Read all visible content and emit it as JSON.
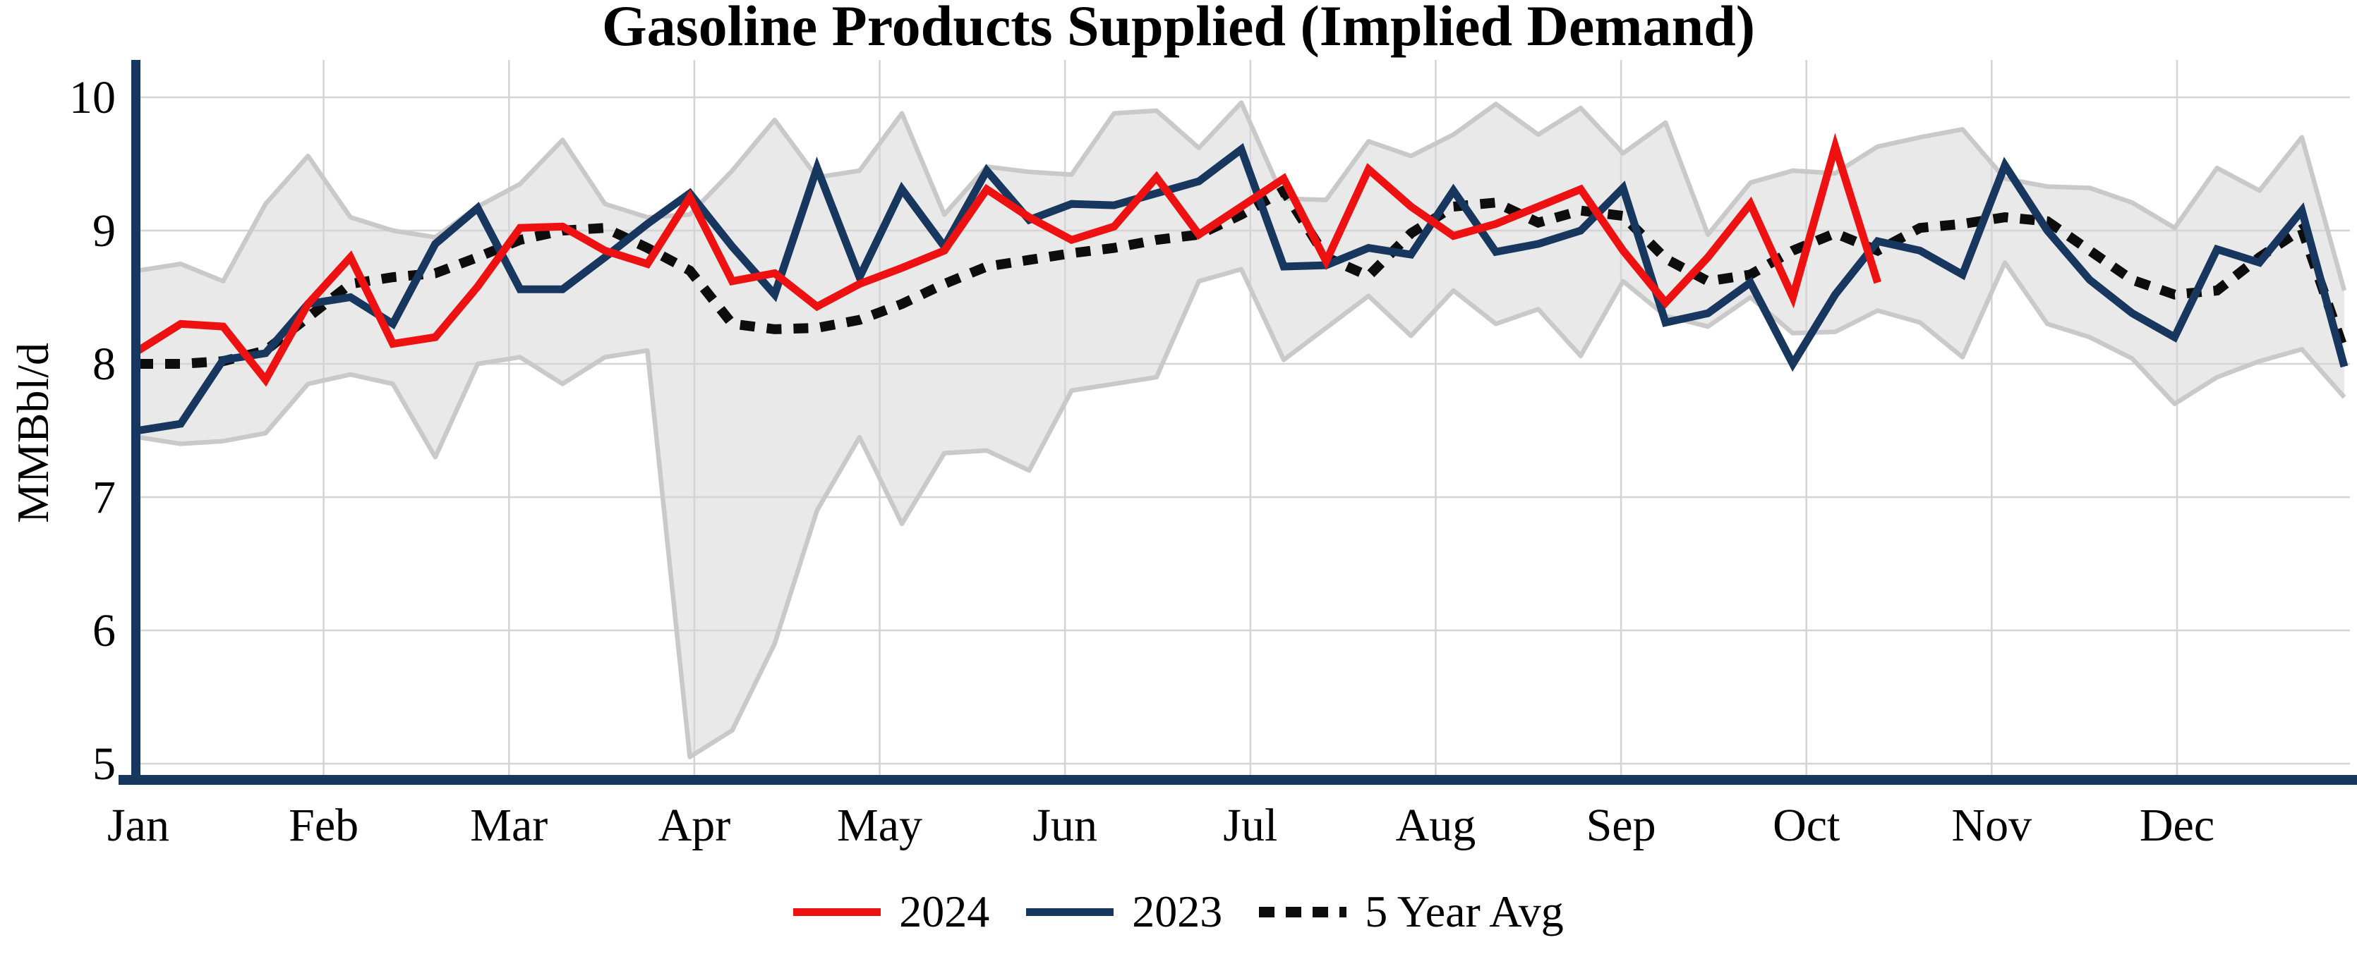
{
  "title": "Gasoline Products Supplied (Implied Demand)",
  "y_axis": {
    "label": "MMBbl/d",
    "ticks": [
      10,
      9,
      8,
      7,
      6,
      5
    ]
  },
  "x_axis": {
    "months": [
      "Jan",
      "Feb",
      "Mar",
      "Apr",
      "May",
      "Jun",
      "Jul",
      "Aug",
      "Sep",
      "Oct",
      "Nov",
      "Dec"
    ]
  },
  "legend": {
    "items": [
      {
        "label": "2024"
      },
      {
        "label": "2023"
      },
      {
        "label": "5 Year Avg"
      }
    ]
  },
  "colors": {
    "background": "#ffffff",
    "gridline": "#d4d4d4",
    "axis_spine": "#17375e",
    "series_2024": "#ee1111",
    "series_2023": "#17375e",
    "series_5yr_avg": "#0d0d0d",
    "band_fill": "#e9e9e9",
    "band_edge": "#c9c9c9"
  },
  "chart_data": {
    "type": "line",
    "title": "Gasoline Products Supplied (Implied Demand)",
    "xlabel": "",
    "ylabel": "MMBbl/d",
    "x_unit": "weekly points, Jan through Dec",
    "x_month_labels": [
      "Jan",
      "Feb",
      "Mar",
      "Apr",
      "May",
      "Jun",
      "Jul",
      "Aug",
      "Sep",
      "Oct",
      "Nov",
      "Dec"
    ],
    "ylim": [
      5,
      10
    ],
    "yticks": [
      5,
      6,
      7,
      8,
      9,
      10
    ],
    "grid": true,
    "legend_position": "bottom-center",
    "series": [
      {
        "name": "2024",
        "color": "#ee1111",
        "style": "solid",
        "values": [
          8.1,
          8.3,
          8.28,
          7.88,
          8.45,
          8.8,
          8.15,
          8.2,
          8.58,
          9.02,
          9.03,
          8.85,
          8.75,
          9.25,
          8.62,
          8.68,
          8.43,
          8.6,
          8.72,
          8.85,
          9.31,
          9.1,
          8.93,
          9.03,
          9.4,
          8.97,
          9.18,
          9.39,
          8.77,
          9.46,
          9.18,
          8.96,
          9.05,
          9.18,
          9.31,
          8.85,
          8.46,
          8.8,
          9.2,
          8.5,
          9.63,
          8.61
        ]
      },
      {
        "name": "2023",
        "color": "#17375e",
        "style": "solid",
        "values": [
          7.5,
          7.55,
          8.03,
          8.08,
          8.45,
          8.5,
          8.3,
          8.9,
          9.17,
          8.56,
          8.56,
          8.8,
          9.05,
          9.28,
          8.88,
          8.52,
          9.47,
          8.65,
          9.31,
          8.88,
          9.45,
          9.08,
          9.2,
          9.19,
          9.28,
          9.37,
          9.61,
          8.73,
          8.74,
          8.87,
          8.82,
          9.3,
          8.84,
          8.9,
          9.0,
          9.32,
          8.31,
          8.38,
          8.61,
          8.0,
          8.52,
          8.92,
          8.85,
          8.67,
          9.49,
          9.0,
          8.63,
          8.38,
          8.2,
          8.86,
          8.76,
          9.15,
          7.98
        ]
      },
      {
        "name": "5 Year Avg",
        "color": "#0d0d0d",
        "style": "dotted",
        "values": [
          8.0,
          8.0,
          8.02,
          8.1,
          8.35,
          8.6,
          8.65,
          8.68,
          8.8,
          8.93,
          9.0,
          9.02,
          8.87,
          8.7,
          8.3,
          8.26,
          8.27,
          8.33,
          8.45,
          8.6,
          8.73,
          8.78,
          8.83,
          8.87,
          8.93,
          8.97,
          9.12,
          9.3,
          8.8,
          8.66,
          8.98,
          9.18,
          9.21,
          9.06,
          9.15,
          9.11,
          8.79,
          8.62,
          8.67,
          8.85,
          8.98,
          8.85,
          9.02,
          9.05,
          9.1,
          9.07,
          8.85,
          8.63,
          8.52,
          8.55,
          8.8,
          9.01,
          8.1
        ]
      }
    ],
    "band": {
      "name": "5-year min-max range",
      "fill": "#e9e9e9",
      "edge": "#c9c9c9",
      "top": [
        8.7,
        8.75,
        8.62,
        9.2,
        9.56,
        9.1,
        9.0,
        8.95,
        9.18,
        9.35,
        9.68,
        9.2,
        9.1,
        9.12,
        9.45,
        9.83,
        9.4,
        9.45,
        9.88,
        9.12,
        9.48,
        9.44,
        9.42,
        9.88,
        9.9,
        9.62,
        9.96,
        9.24,
        9.23,
        9.67,
        9.56,
        9.72,
        9.95,
        9.72,
        9.92,
        9.58,
        9.81,
        8.97,
        9.36,
        9.45,
        9.43,
        9.63,
        9.7,
        9.76,
        9.39,
        9.33,
        9.32,
        9.21,
        9.02,
        9.47,
        9.3,
        9.7,
        8.55
      ],
      "bottom": [
        7.45,
        7.4,
        7.42,
        7.48,
        7.85,
        7.92,
        7.85,
        7.3,
        8.0,
        8.05,
        7.85,
        8.05,
        8.1,
        5.05,
        5.25,
        5.9,
        6.9,
        7.45,
        6.8,
        7.33,
        7.35,
        7.2,
        7.8,
        7.85,
        7.9,
        8.62,
        8.71,
        8.03,
        8.27,
        8.51,
        8.21,
        8.55,
        8.3,
        8.41,
        8.06,
        8.62,
        8.36,
        8.28,
        8.5,
        8.23,
        8.24,
        8.4,
        8.31,
        8.05,
        8.76,
        8.3,
        8.2,
        8.04,
        7.7,
        7.9,
        8.02,
        8.11,
        7.75
      ]
    }
  }
}
